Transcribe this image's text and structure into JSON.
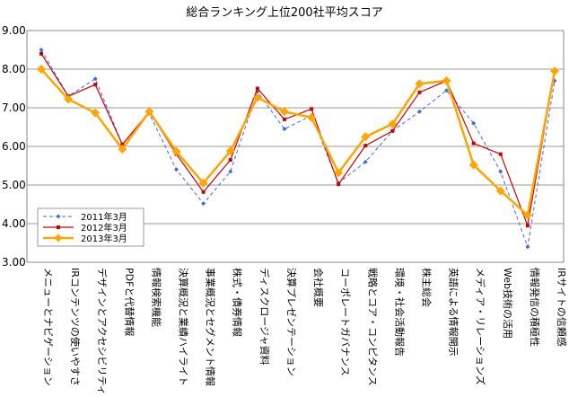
{
  "chart_data": {
    "type": "line",
    "title": "総合ランキング上位200社平均スコア",
    "ylim": [
      3.0,
      9.0
    ],
    "yticks": [
      "9.00",
      "8.00",
      "7.00",
      "6.00",
      "5.00",
      "4.00",
      "3.00"
    ],
    "grid": true,
    "legend_position": "bottom-left",
    "categories": [
      "メニューとナビゲーション",
      "IRコンテンツの使いやすさ",
      "デザインとアクセシビリティ",
      "PDFと代替情報",
      "情報検索機能",
      "決算概況と業績ハイライト",
      "事業概況とセグメント情報",
      "株式・債券情報",
      "ディスクロージャ資料",
      "決算プレゼンテーション",
      "会社概要",
      "コーポレートガバナンス",
      "戦略とコア・コンピタンス",
      "環境・社会活動報告",
      "株主総会",
      "英語による情報開示",
      "メディア・リレーションズ",
      "Web技術の活用",
      "情報発信の積極性",
      "IRサイトの信頼感"
    ],
    "series": [
      {
        "name": "2011年3月",
        "color": "#4169e1",
        "style": "dashed",
        "marker": "diamond",
        "values": [
          8.5,
          7.3,
          7.75,
          6.05,
          6.85,
          5.4,
          4.52,
          5.35,
          7.42,
          6.45,
          6.8,
          5.05,
          5.6,
          6.4,
          6.9,
          7.45,
          6.6,
          5.35,
          3.4,
          7.7
        ]
      },
      {
        "name": "2012年3月",
        "color": "#cc0000",
        "style": "solid",
        "marker": "square",
        "values": [
          8.4,
          7.3,
          7.6,
          6.05,
          6.9,
          5.8,
          4.82,
          5.65,
          7.5,
          6.7,
          6.97,
          5.02,
          6.02,
          6.4,
          7.4,
          7.7,
          6.08,
          5.8,
          3.95,
          7.95
        ]
      },
      {
        "name": "2013年3月",
        "color": "#ffa500",
        "style": "solid",
        "marker": "diamond",
        "values": [
          8.0,
          7.22,
          6.87,
          5.93,
          6.9,
          5.87,
          5.05,
          5.88,
          7.27,
          6.9,
          6.75,
          5.32,
          6.25,
          6.58,
          7.62,
          7.7,
          5.52,
          4.85,
          4.22,
          7.95
        ]
      }
    ]
  }
}
